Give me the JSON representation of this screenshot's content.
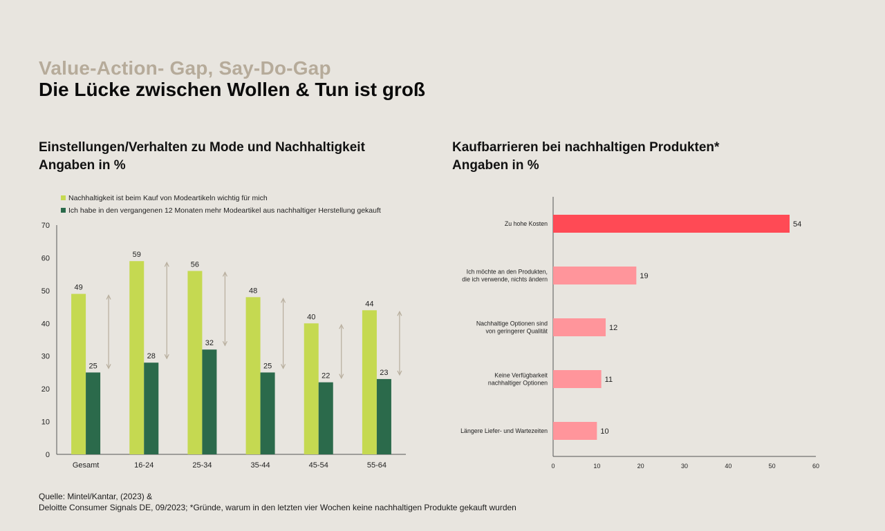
{
  "header": {
    "kicker": "Value-Action- Gap, Say-Do-Gap",
    "title": "Die Lücke zwischen Wollen & Tun ist groß"
  },
  "left_panel": {
    "title_line1": "Einstellungen/Verhalten zu Mode und Nachhaltigkeit",
    "title_line2": "Angaben in %"
  },
  "right_panel": {
    "title_line1": "Kaufbarrieren bei nachhaltigen Produkten*",
    "title_line2": "Angaben in %"
  },
  "source": {
    "line1": "Quelle: Mintel/Kantar, (2023) &",
    "line2": "Deloitte Consumer Signals DE, 09/2023; *Gründe, warum in den letzten vier Wochen keine nachhaltigen Produkte gekauft wurden"
  },
  "colors": {
    "background": "#e8e5df",
    "light_green": "#c5d951",
    "dark_green": "#2b6a4b",
    "red_highlight": "#ff4a55",
    "pink": "#ff959b",
    "gap_arrow": "#b7ad9c"
  },
  "chart_data": [
    {
      "type": "bar",
      "categories": [
        "Gesamt",
        "16-24",
        "25-34",
        "35-44",
        "45-54",
        "55-64"
      ],
      "series": [
        {
          "name": "Nachhaltigkeit ist beim Kauf von Modeartikeln wichtig für mich",
          "values": [
            49,
            59,
            56,
            48,
            40,
            44
          ],
          "color": "#c5d951"
        },
        {
          "name": "Ich habe in den vergangenen 12 Monaten mehr Modeartikel aus nachhaltiger Herstellung gekauft",
          "values": [
            25,
            28,
            32,
            25,
            22,
            23
          ],
          "color": "#2b6a4b"
        }
      ],
      "ylim": [
        0,
        70
      ],
      "yticks": [
        0,
        10,
        20,
        30,
        40,
        50,
        60,
        70
      ],
      "legend": "top-left",
      "grid": false,
      "gap_arrows": true
    },
    {
      "type": "bar",
      "orientation": "horizontal",
      "categories": [
        [
          "Zu hohe Kosten"
        ],
        [
          "Ich möchte an den Produkten,",
          "die ich verwende, nichts ändern"
        ],
        [
          "Nachhaltige Optionen sind",
          "von geringerer Qualität"
        ],
        [
          "Keine Verfügbarkeit",
          "nachhaltiger Optionen"
        ],
        [
          "Längere Liefer- und Wartezeiten"
        ]
      ],
      "values": [
        54,
        19,
        12,
        11,
        10
      ],
      "colors": [
        "#ff4a55",
        "#ff959b",
        "#ff959b",
        "#ff959b",
        "#ff959b"
      ],
      "xlim": [
        0,
        60
      ],
      "xticks": [
        0,
        10,
        20,
        30,
        40,
        50,
        60
      ],
      "grid": false
    }
  ]
}
